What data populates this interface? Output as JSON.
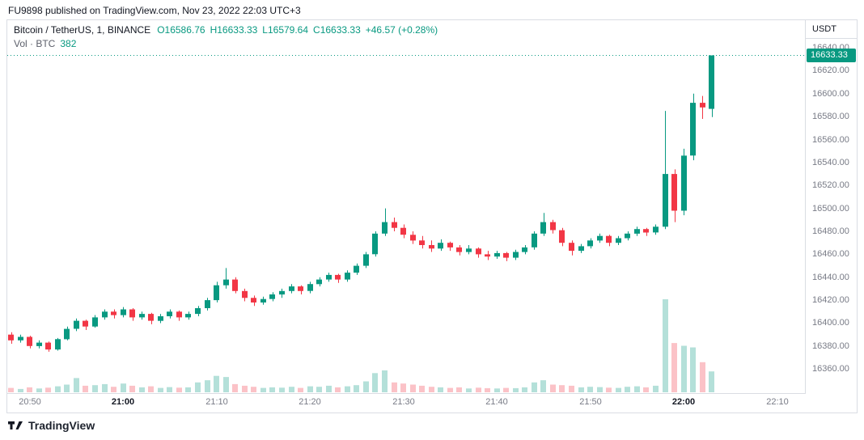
{
  "page": {
    "published_line": "FU9898 published on TradingView.com, Nov 23, 2022 22:03 UTC+3",
    "brand": "TradingView"
  },
  "legend": {
    "symbol": "Bitcoin / TetherUS, 1, BINANCE",
    "open": "O16586.76",
    "high": "H16633.33",
    "low": "L16579.64",
    "close": "C16633.33",
    "change": "+46.57 (+0.28%)",
    "volume_label": "Vol · BTC",
    "volume_value": "382"
  },
  "axis": {
    "currency": "USDT",
    "last_price_label": "16633.33",
    "y_ticks": [
      "16640.00",
      "16620.00",
      "16600.00",
      "16580.00",
      "16560.00",
      "16540.00",
      "16520.00",
      "16500.00",
      "16480.00",
      "16460.00",
      "16440.00",
      "16420.00",
      "16400.00",
      "16380.00",
      "16360.00"
    ],
    "x_ticks": [
      {
        "label": "20:50",
        "index": 2,
        "major": false
      },
      {
        "label": "21:00",
        "index": 12,
        "major": true
      },
      {
        "label": "21:10",
        "index": 22,
        "major": false
      },
      {
        "label": "21:20",
        "index": 32,
        "major": false
      },
      {
        "label": "21:30",
        "index": 42,
        "major": false
      },
      {
        "label": "21:40",
        "index": 52,
        "major": false
      },
      {
        "label": "21:50",
        "index": 62,
        "major": false
      },
      {
        "label": "22:00",
        "index": 72,
        "major": true
      },
      {
        "label": "22:10",
        "index": 82,
        "major": false
      }
    ]
  },
  "colors": {
    "up": "#089981",
    "down": "#F23645",
    "axis_text": "#787B86",
    "text": "#131722",
    "border": "#DADDE3",
    "last_price_bg": "#089981"
  },
  "chart_data": {
    "type": "candlestick",
    "title": "Bitcoin / TetherUS, 1, BINANCE",
    "exchange": "BINANCE",
    "interval_minutes": 1,
    "start_time": "20:48",
    "end_time": "22:03",
    "last_price": 16633.33,
    "last_change": "+46.57 (+0.28%)",
    "last_volume_btc": 382,
    "y_range": [
      16339,
      16664
    ],
    "vol_axis_max": 1700,
    "x_tick_labels": [
      "20:50",
      "21:00",
      "21:10",
      "21:20",
      "21:30",
      "21:40",
      "21:50",
      "22:00",
      "22:10"
    ],
    "ohlcv": [
      [
        16390,
        16392,
        16382,
        16385,
        80
      ],
      [
        16385,
        16390,
        16383,
        16388,
        60
      ],
      [
        16388,
        16389,
        16378,
        16380,
        90
      ],
      [
        16380,
        16385,
        16378,
        16383,
        70
      ],
      [
        16383,
        16384,
        16375,
        16377,
        85
      ],
      [
        16377,
        16387,
        16376,
        16386,
        110
      ],
      [
        16386,
        16397,
        16385,
        16395,
        140
      ],
      [
        16395,
        16404,
        16393,
        16402,
        260
      ],
      [
        16402,
        16403,
        16394,
        16397,
        120
      ],
      [
        16397,
        16407,
        16396,
        16405,
        130
      ],
      [
        16405,
        16412,
        16403,
        16410,
        150
      ],
      [
        16410,
        16412,
        16404,
        16407,
        100
      ],
      [
        16407,
        16414,
        16405,
        16412,
        160
      ],
      [
        16412,
        16413,
        16402,
        16405,
        120
      ],
      [
        16405,
        16410,
        16403,
        16408,
        90
      ],
      [
        16408,
        16409,
        16399,
        16402,
        110
      ],
      [
        16402,
        16408,
        16400,
        16406,
        80
      ],
      [
        16406,
        16412,
        16404,
        16410,
        95
      ],
      [
        16410,
        16411,
        16402,
        16405,
        85
      ],
      [
        16405,
        16410,
        16403,
        16408,
        90
      ],
      [
        16408,
        16415,
        16406,
        16413,
        180
      ],
      [
        16413,
        16422,
        16411,
        16420,
        220
      ],
      [
        16420,
        16436,
        16418,
        16433,
        300
      ],
      [
        16433,
        16448,
        16430,
        16438,
        280
      ],
      [
        16438,
        16440,
        16426,
        16428,
        150
      ],
      [
        16428,
        16430,
        16419,
        16422,
        120
      ],
      [
        16422,
        16424,
        16415,
        16418,
        100
      ],
      [
        16418,
        16423,
        16416,
        16421,
        80
      ],
      [
        16421,
        16427,
        16419,
        16425,
        90
      ],
      [
        16425,
        16430,
        16422,
        16428,
        85
      ],
      [
        16428,
        16434,
        16426,
        16432,
        100
      ],
      [
        16432,
        16433,
        16425,
        16428,
        80
      ],
      [
        16428,
        16436,
        16426,
        16434,
        110
      ],
      [
        16434,
        16440,
        16432,
        16438,
        100
      ],
      [
        16438,
        16444,
        16436,
        16442,
        120
      ],
      [
        16442,
        16443,
        16435,
        16438,
        90
      ],
      [
        16438,
        16446,
        16436,
        16444,
        110
      ],
      [
        16444,
        16452,
        16442,
        16450,
        130
      ],
      [
        16450,
        16462,
        16448,
        16460,
        200
      ],
      [
        16460,
        16480,
        16458,
        16478,
        350
      ],
      [
        16478,
        16500,
        16476,
        16488,
        400
      ],
      [
        16488,
        16492,
        16480,
        16483,
        180
      ],
      [
        16483,
        16486,
        16474,
        16477,
        160
      ],
      [
        16477,
        16480,
        16469,
        16472,
        140
      ],
      [
        16472,
        16476,
        16465,
        16468,
        120
      ],
      [
        16468,
        16472,
        16462,
        16465,
        100
      ],
      [
        16465,
        16473,
        16463,
        16470,
        90
      ],
      [
        16470,
        16471,
        16463,
        16466,
        80
      ],
      [
        16466,
        16468,
        16459,
        16462,
        90
      ],
      [
        16462,
        16468,
        16460,
        16465,
        70
      ],
      [
        16465,
        16466,
        16457,
        16460,
        85
      ],
      [
        16460,
        16463,
        16455,
        16458,
        75
      ],
      [
        16458,
        16463,
        16456,
        16461,
        70
      ],
      [
        16461,
        16462,
        16454,
        16457,
        80
      ],
      [
        16457,
        16464,
        16455,
        16462,
        75
      ],
      [
        16462,
        16468,
        16460,
        16466,
        90
      ],
      [
        16466,
        16480,
        16464,
        16478,
        180
      ],
      [
        16478,
        16496,
        16476,
        16488,
        220
      ],
      [
        16488,
        16490,
        16478,
        16481,
        140
      ],
      [
        16481,
        16483,
        16467,
        16470,
        130
      ],
      [
        16470,
        16472,
        16459,
        16463,
        120
      ],
      [
        16463,
        16469,
        16461,
        16467,
        90
      ],
      [
        16467,
        16474,
        16465,
        16472,
        100
      ],
      [
        16472,
        16478,
        16470,
        16476,
        95
      ],
      [
        16476,
        16477,
        16467,
        16470,
        85
      ],
      [
        16470,
        16476,
        16468,
        16474,
        80
      ],
      [
        16474,
        16480,
        16472,
        16478,
        100
      ],
      [
        16478,
        16484,
        16476,
        16482,
        110
      ],
      [
        16482,
        16483,
        16476,
        16479,
        90
      ],
      [
        16479,
        16486,
        16477,
        16484,
        120
      ],
      [
        16484,
        16585,
        16482,
        16530,
        1700
      ],
      [
        16530,
        16534,
        16488,
        16498,
        900
      ],
      [
        16498,
        16552,
        16494,
        16546,
        850
      ],
      [
        16546,
        16600,
        16542,
        16592,
        820
      ],
      [
        16592,
        16598,
        16578,
        16588,
        550
      ],
      [
        16586.76,
        16633.33,
        16579.64,
        16633.33,
        382
      ]
    ]
  }
}
